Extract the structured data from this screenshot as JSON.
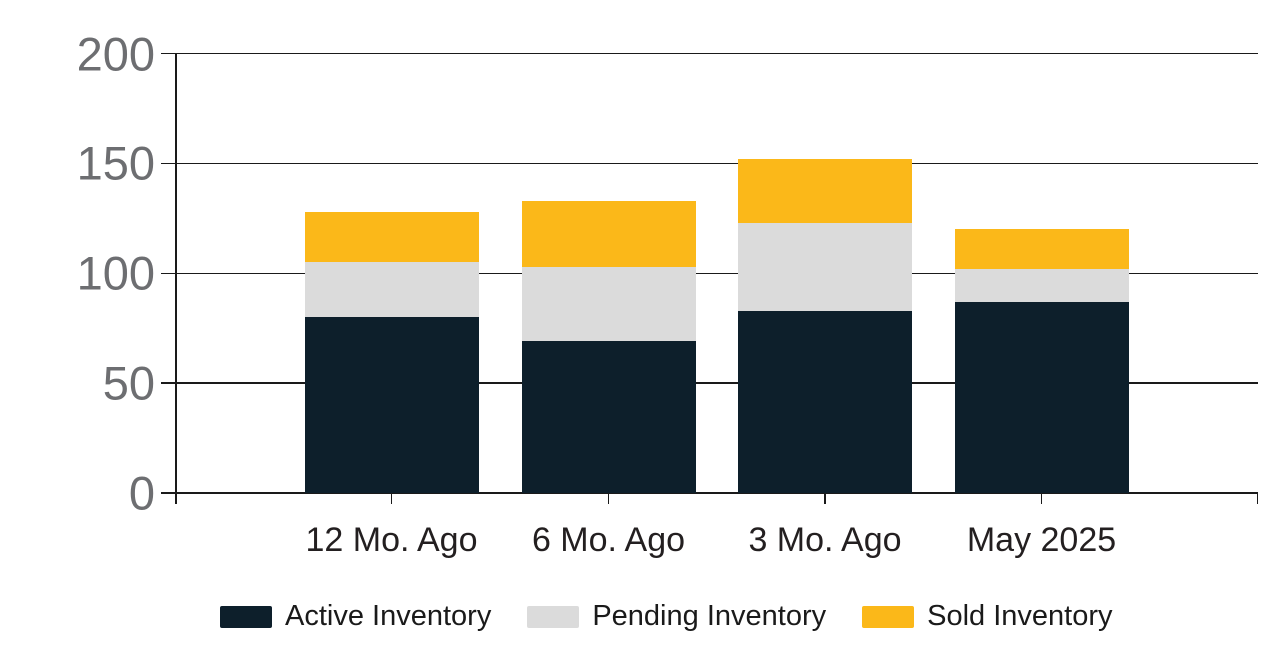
{
  "chart_data": {
    "type": "bar",
    "stacked": true,
    "title": "",
    "categories": [
      "12 Mo. Ago",
      "6 Mo. Ago",
      "3 Mo. Ago",
      "May 2025"
    ],
    "series": [
      {
        "name": "Active Inventory",
        "color": "#0d1f2b",
        "values": [
          80,
          69,
          83,
          87
        ]
      },
      {
        "name": "Pending Inventory",
        "color": "#dbdbdb",
        "values": [
          25,
          34,
          40,
          15
        ]
      },
      {
        "name": "Sold Inventory",
        "color": "#fbb819",
        "values": [
          23,
          30,
          29,
          18
        ]
      }
    ],
    "stack_totals": [
      128,
      133,
      152,
      120
    ],
    "xlabel": "",
    "ylabel": "",
    "ylim": [
      0,
      200
    ],
    "yticks": [
      0,
      50,
      100,
      150,
      200
    ],
    "ytick_labels": [
      "0",
      "50",
      "100",
      "150",
      "200"
    ],
    "grid": true,
    "legend_position": "bottom"
  },
  "colors": {
    "axis_line": "#1a1a1a",
    "ytick_text": "#6d6e71",
    "xtick_text": "#231f20",
    "legend_text": "#1a1a1a",
    "background": "#ffffff"
  }
}
